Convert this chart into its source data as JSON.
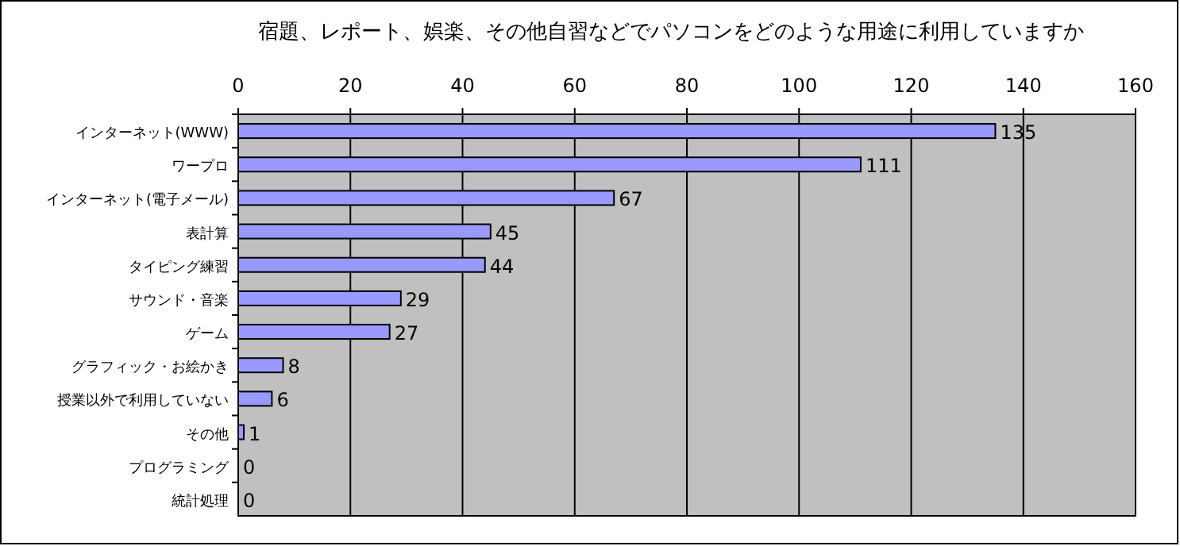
{
  "chart_data": {
    "type": "bar",
    "orientation": "horizontal",
    "title": "宿題、レポート、娯楽、その他自習などでパソコンをどのような用途に利用していますか",
    "categories": [
      "インターネット(WWW)",
      "ワープロ",
      "インターネット(電子メール)",
      "表計算",
      "タイピング練習",
      "サウンド・音楽",
      "ゲーム",
      "グラフィック・お絵かき",
      "授業以外で利用していない",
      "その他",
      "プログラミング",
      "統計処理"
    ],
    "values": [
      135,
      111,
      67,
      45,
      44,
      29,
      27,
      8,
      6,
      1,
      0,
      0
    ],
    "color": "#9999ff",
    "xlim": [
      0,
      160
    ],
    "xticks": [
      0,
      20,
      40,
      60,
      80,
      100,
      120,
      140,
      160
    ],
    "grid": "x",
    "data_labels": true
  }
}
